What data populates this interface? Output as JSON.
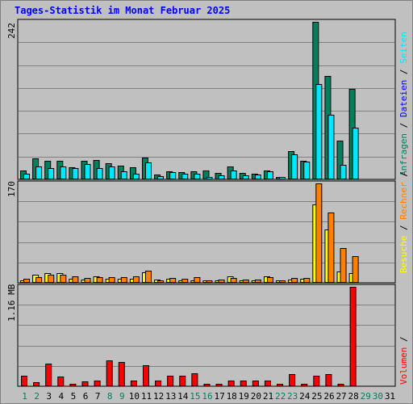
{
  "title": "Tages-Statistik im Monat Februar 2025",
  "colors": {
    "anfragen": "#00805c",
    "dateien": "#00e8ff",
    "seiten": "#00e8ff",
    "besuche": "#ffff00",
    "rechner": "#ff8000",
    "volumen": "#ff0000",
    "weekend_day": "#00805c",
    "weekday": "#000000",
    "slash": "#000000"
  },
  "legend_top": [
    {
      "label": "Anfragen",
      "color": "#00805c"
    },
    {
      "label": "Dateien",
      "color": "#0000ff"
    },
    {
      "label": "Seiten",
      "color": "#00e8ff"
    }
  ],
  "legend_mid": [
    {
      "label": "Besuche",
      "color": "#ffff00"
    },
    {
      "label": "Rechner",
      "color": "#ff8000"
    }
  ],
  "legend_bot": [
    {
      "label": "Volumen",
      "color": "#ff0000"
    }
  ],
  "chart_data": [
    {
      "type": "bar",
      "title": "Tages-Statistik im Monat Februar 2025",
      "ylabel": "242",
      "ylim": [
        0,
        242
      ],
      "categories": [
        "1",
        "2",
        "3",
        "4",
        "5",
        "6",
        "7",
        "8",
        "9",
        "10",
        "11",
        "12",
        "13",
        "14",
        "15",
        "16",
        "17",
        "18",
        "19",
        "20",
        "21",
        "22",
        "23",
        "24",
        "25",
        "26",
        "27",
        "28",
        "29",
        "30",
        "31"
      ],
      "series": [
        {
          "name": "Anfragen",
          "values": [
            12,
            31,
            28,
            27,
            17,
            28,
            29,
            24,
            20,
            17,
            32,
            6,
            11,
            10,
            11,
            12,
            9,
            19,
            9,
            7,
            12,
            3,
            42,
            27,
            242,
            158,
            59,
            139,
            0,
            0,
            0
          ]
        },
        {
          "name": "Dateien",
          "values": [
            7,
            19,
            16,
            19,
            16,
            23,
            16,
            19,
            11,
            7,
            25,
            4,
            10,
            7,
            7,
            3,
            5,
            12,
            5,
            6,
            11,
            2,
            38,
            26,
            146,
            98,
            21,
            78,
            0,
            0,
            0
          ]
        }
      ]
    },
    {
      "type": "bar",
      "ylabel": "170",
      "ylim": [
        0,
        170
      ],
      "categories": [
        "1",
        "2",
        "3",
        "4",
        "5",
        "6",
        "7",
        "8",
        "9",
        "10",
        "11",
        "12",
        "13",
        "14",
        "15",
        "16",
        "17",
        "18",
        "19",
        "20",
        "21",
        "22",
        "23",
        "24",
        "25",
        "26",
        "27",
        "28",
        "29",
        "30",
        "31"
      ],
      "series": [
        {
          "name": "Besuche",
          "values": [
            3,
            13,
            15,
            16,
            5,
            4,
            10,
            6,
            6,
            6,
            17,
            4,
            6,
            3,
            1,
            1,
            2,
            10,
            2,
            2,
            10,
            1,
            4,
            5,
            134,
            90,
            18,
            15,
            0,
            0,
            0
          ]
        },
        {
          "name": "Rechner",
          "values": [
            6,
            9,
            12,
            12,
            10,
            7,
            8,
            8,
            8,
            10,
            20,
            3,
            7,
            6,
            8,
            1,
            4,
            7,
            4,
            4,
            8,
            1,
            7,
            7,
            170,
            120,
            58,
            45,
            0,
            0,
            0
          ]
        }
      ]
    },
    {
      "type": "bar",
      "ylabel": "1.16 MB",
      "ylim": [
        0,
        1.16
      ],
      "categories": [
        "1",
        "2",
        "3",
        "4",
        "5",
        "6",
        "7",
        "8",
        "9",
        "10",
        "11",
        "12",
        "13",
        "14",
        "15",
        "16",
        "17",
        "18",
        "19",
        "20",
        "21",
        "22",
        "23",
        "24",
        "25",
        "26",
        "27",
        "28",
        "29",
        "30",
        "31"
      ],
      "series": [
        {
          "name": "Volumen",
          "values": [
            0.11,
            0.04,
            0.26,
            0.1,
            0.01,
            0.05,
            0.06,
            0.29,
            0.28,
            0.06,
            0.24,
            0.06,
            0.11,
            0.11,
            0.14,
            0.01,
            0.01,
            0.06,
            0.06,
            0.06,
            0.06,
            0.01,
            0.13,
            0.01,
            0.11,
            0.13,
            0.01,
            1.16,
            0,
            0,
            0
          ]
        }
      ]
    }
  ],
  "x_weekend": [
    "1",
    "2",
    "8",
    "9",
    "15",
    "16",
    "22",
    "23",
    "29",
    "30"
  ]
}
